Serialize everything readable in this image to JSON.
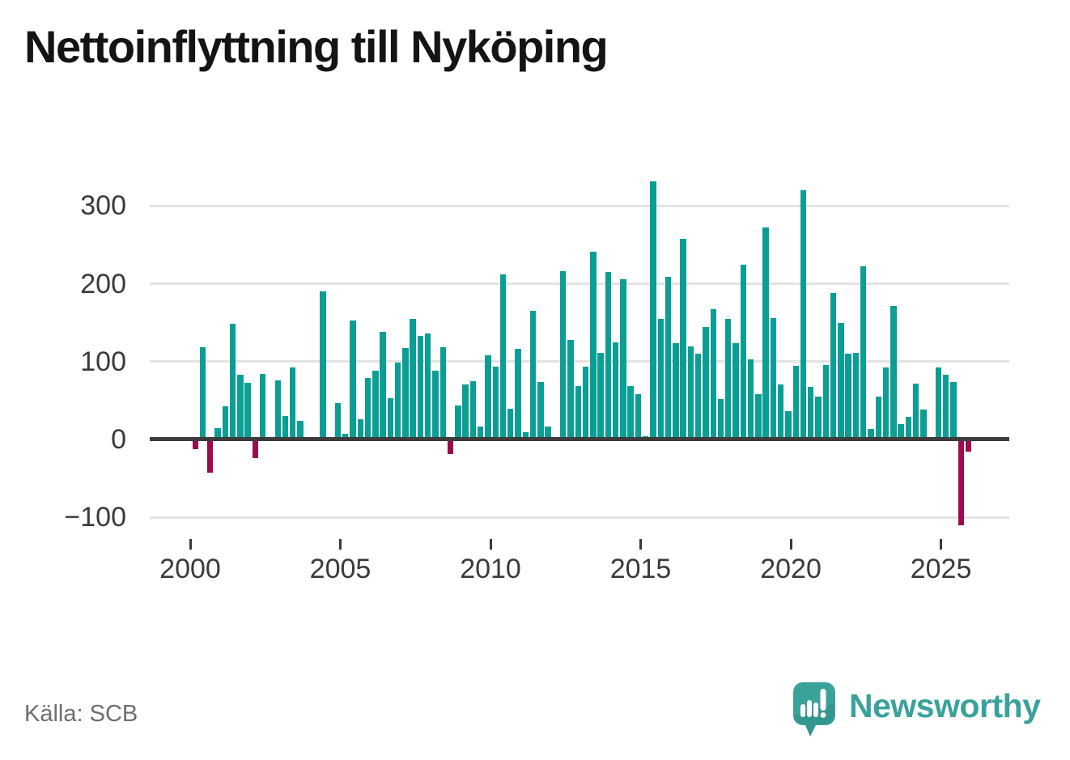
{
  "title": "Nettoinflyttning till Nyköping",
  "source": "Källa: SCB",
  "branding": {
    "name": "Newsworthy"
  },
  "chart_data": {
    "type": "bar",
    "title": "Nettoinflyttning till Nyköping",
    "xlabel": "",
    "ylabel": "",
    "x_unit": "quarter",
    "grid": "horizontal",
    "legend": "none",
    "ylim": [
      -130,
      345
    ],
    "yticks": [
      {
        "label": "300",
        "value": 300
      },
      {
        "label": "200",
        "value": 200
      },
      {
        "label": "100",
        "value": 100
      },
      {
        "label": "0",
        "value": 0
      },
      {
        "label": "−100",
        "value": -100
      }
    ],
    "xticks": [
      {
        "label": "2000",
        "year": 2000
      },
      {
        "label": "2005",
        "year": 2005
      },
      {
        "label": "2010",
        "year": 2010
      },
      {
        "label": "2015",
        "year": 2015
      },
      {
        "label": "2020",
        "year": 2020
      },
      {
        "label": "2025",
        "year": 2025
      }
    ],
    "colors": {
      "positive": "#0a9e94",
      "negative": "#9c0b4d"
    },
    "categories": [
      "2000 Q1",
      "2000 Q2",
      "2000 Q3",
      "2000 Q4",
      "2001 Q1",
      "2001 Q2",
      "2001 Q3",
      "2001 Q4",
      "2002 Q1",
      "2002 Q2",
      "2002 Q3",
      "2002 Q4",
      "2003 Q1",
      "2003 Q2",
      "2003 Q3",
      "2003 Q4",
      "2004 Q1",
      "2004 Q2",
      "2004 Q3",
      "2004 Q4",
      "2005 Q1",
      "2005 Q2",
      "2005 Q3",
      "2005 Q4",
      "2006 Q1",
      "2006 Q2",
      "2006 Q3",
      "2006 Q4",
      "2007 Q1",
      "2007 Q2",
      "2007 Q3",
      "2007 Q4",
      "2008 Q1",
      "2008 Q2",
      "2008 Q3",
      "2008 Q4",
      "2009 Q1",
      "2009 Q2",
      "2009 Q3",
      "2009 Q4",
      "2010 Q1",
      "2010 Q2",
      "2010 Q3",
      "2010 Q4",
      "2011 Q1",
      "2011 Q2",
      "2011 Q3",
      "2011 Q4",
      "2012 Q1",
      "2012 Q2",
      "2012 Q3",
      "2012 Q4",
      "2013 Q1",
      "2013 Q2",
      "2013 Q3",
      "2013 Q4",
      "2014 Q1",
      "2014 Q2",
      "2014 Q3",
      "2014 Q4",
      "2015 Q1",
      "2015 Q2",
      "2015 Q3",
      "2015 Q4",
      "2016 Q1",
      "2016 Q2",
      "2016 Q3",
      "2016 Q4",
      "2017 Q1",
      "2017 Q2",
      "2017 Q3",
      "2017 Q4",
      "2018 Q1",
      "2018 Q2",
      "2018 Q3",
      "2018 Q4",
      "2019 Q1",
      "2019 Q2",
      "2019 Q3",
      "2019 Q4",
      "2020 Q1",
      "2020 Q2",
      "2020 Q3",
      "2020 Q4",
      "2021 Q1",
      "2021 Q2",
      "2021 Q3",
      "2021 Q4",
      "2022 Q1",
      "2022 Q2",
      "2022 Q3",
      "2022 Q4",
      "2023 Q1",
      "2023 Q2",
      "2023 Q3",
      "2023 Q4",
      "2024 Q1",
      "2024 Q2",
      "2024 Q3",
      "2024 Q4",
      "2025 Q1",
      "2025 Q2",
      "2025 Q3",
      "2025 Q4"
    ],
    "values": [
      -12,
      119,
      -43,
      15,
      43,
      149,
      83,
      73,
      -24,
      84,
      0,
      76,
      30,
      93,
      24,
      3,
      0,
      190,
      0,
      47,
      7,
      153,
      26,
      79,
      88,
      138,
      53,
      99,
      117,
      155,
      133,
      136,
      88,
      118,
      -19,
      44,
      71,
      75,
      17,
      108,
      94,
      212,
      40,
      116,
      9,
      165,
      74,
      17,
      0,
      216,
      128,
      69,
      94,
      241,
      111,
      215,
      125,
      206,
      69,
      58,
      4,
      332,
      155,
      209,
      124,
      258,
      120,
      110,
      144,
      167,
      52,
      155,
      124,
      225,
      103,
      58,
      272,
      156,
      71,
      36,
      95,
      320,
      68,
      55,
      96,
      188,
      150,
      110,
      111,
      222,
      13,
      55,
      92,
      171,
      20,
      29,
      72,
      38,
      0,
      93,
      83,
      74,
      -110,
      -16
    ]
  }
}
